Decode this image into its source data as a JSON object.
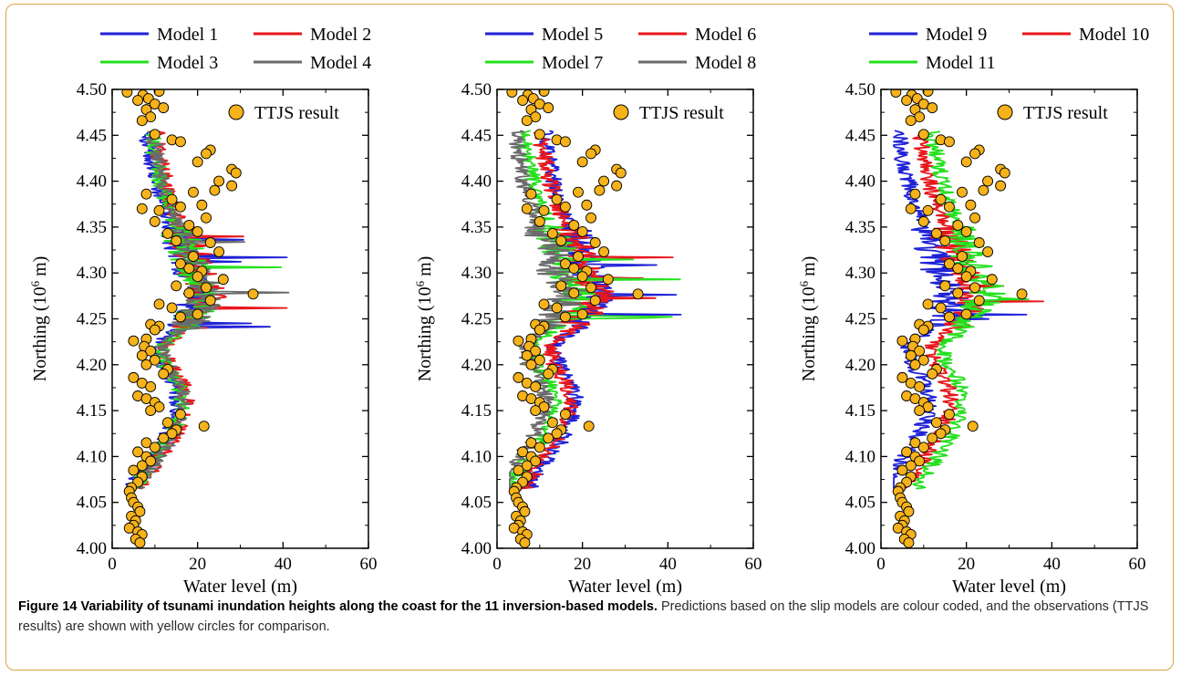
{
  "chart_data": [
    {
      "type": "line",
      "xlabel": "Water level (m)",
      "ylabel_main": "Northing (10",
      "ylabel_sup": "6",
      "ylabel_tail": " m)",
      "xlim": [
        0,
        60
      ],
      "ylim": [
        4.0,
        4.5
      ],
      "xticks": [
        "0",
        "20",
        "40",
        "60"
      ],
      "yticks": [
        "4.00",
        "4.05",
        "4.10",
        "4.15",
        "4.20",
        "4.25",
        "4.30",
        "4.35",
        "4.40",
        "4.45",
        "4.50"
      ],
      "series": [
        {
          "name": "Model 1",
          "color": "#1f22d6",
          "offset": 0
        },
        {
          "name": "Model 2",
          "color": "#e8161b",
          "offset": 2
        },
        {
          "name": "Model 3",
          "color": "#25e01f",
          "offset": 1
        },
        {
          "name": "Model 4",
          "color": "#6b6b6b",
          "offset": 1.5
        }
      ],
      "observations_label": "TTJS result"
    },
    {
      "type": "line",
      "xlabel": "Water level (m)",
      "ylabel_main": "Northing (10",
      "ylabel_sup": "6",
      "ylabel_tail": " m)",
      "xlim": [
        0,
        60
      ],
      "ylim": [
        4.0,
        4.5
      ],
      "xticks": [
        "0",
        "20",
        "40",
        "60"
      ],
      "yticks": [
        "4.00",
        "4.05",
        "4.10",
        "4.15",
        "4.20",
        "4.25",
        "4.30",
        "4.35",
        "4.40",
        "4.45",
        "4.50"
      ],
      "series": [
        {
          "name": "Model 5",
          "color": "#1f22d6",
          "offset": 3
        },
        {
          "name": "Model 6",
          "color": "#e8161b",
          "offset": 2
        },
        {
          "name": "Model 7",
          "color": "#25e01f",
          "offset": -2
        },
        {
          "name": "Model 8",
          "color": "#6b6b6b",
          "offset": -4
        }
      ],
      "observations_label": "TTJS result"
    },
    {
      "type": "line",
      "xlabel": "Water level (m)",
      "ylabel_main": "Northing (10",
      "ylabel_sup": "6",
      "ylabel_tail": " m)",
      "xlim": [
        0,
        60
      ],
      "ylim": [
        4.0,
        4.5
      ],
      "xticks": [
        "0",
        "20",
        "40",
        "60"
      ],
      "yticks": [
        "4.00",
        "4.05",
        "4.10",
        "4.15",
        "4.20",
        "4.25",
        "4.30",
        "4.35",
        "4.40",
        "4.45",
        "4.50"
      ],
      "series": [
        {
          "name": "Model 9",
          "color": "#1f22d6",
          "offset": -4
        },
        {
          "name": "Model 10",
          "color": "#e8161b",
          "offset": 1
        },
        {
          "name": "Model 11",
          "color": "#25e01f",
          "offset": 4
        }
      ],
      "observations_label": "TTJS result"
    }
  ],
  "observations": {
    "color": "#f5b21a",
    "points": [
      [
        3.5,
        4.497
      ],
      [
        7.2,
        4.494
      ],
      [
        8.5,
        4.49
      ],
      [
        11,
        4.498
      ],
      [
        6,
        4.488
      ],
      [
        10,
        4.484
      ],
      [
        12,
        4.48
      ],
      [
        8,
        4.478
      ],
      [
        9,
        4.47
      ],
      [
        7,
        4.466
      ],
      [
        10,
        4.451
      ],
      [
        14,
        4.445
      ],
      [
        16,
        4.443
      ],
      [
        23,
        4.434
      ],
      [
        22,
        4.43
      ],
      [
        20,
        4.421
      ],
      [
        25,
        4.4
      ],
      [
        28,
        4.413
      ],
      [
        29,
        4.409
      ],
      [
        24,
        4.39
      ],
      [
        28,
        4.395
      ],
      [
        19,
        4.388
      ],
      [
        8,
        4.386
      ],
      [
        14,
        4.38
      ],
      [
        16,
        4.372
      ],
      [
        21,
        4.374
      ],
      [
        7,
        4.37
      ],
      [
        11,
        4.368
      ],
      [
        10,
        4.356
      ],
      [
        18,
        4.352
      ],
      [
        22,
        4.36
      ],
      [
        20,
        4.345
      ],
      [
        13,
        4.343
      ],
      [
        15,
        4.335
      ],
      [
        23,
        4.333
      ],
      [
        25,
        4.323
      ],
      [
        19,
        4.318
      ],
      [
        16,
        4.31
      ],
      [
        18,
        4.305
      ],
      [
        21,
        4.302
      ],
      [
        20,
        4.296
      ],
      [
        26,
        4.293
      ],
      [
        15,
        4.286
      ],
      [
        22,
        4.284
      ],
      [
        18,
        4.278
      ],
      [
        33,
        4.277
      ],
      [
        23,
        4.27
      ],
      [
        11,
        4.266
      ],
      [
        14,
        4.262
      ],
      [
        20,
        4.255
      ],
      [
        16,
        4.252
      ],
      [
        9,
        4.244
      ],
      [
        11,
        4.242
      ],
      [
        10,
        4.238
      ],
      [
        8,
        4.228
      ],
      [
        5,
        4.226
      ],
      [
        7.5,
        4.22
      ],
      [
        9,
        4.215
      ],
      [
        7,
        4.21
      ],
      [
        10,
        4.205
      ],
      [
        8,
        4.2
      ],
      [
        13,
        4.195
      ],
      [
        12,
        4.19
      ],
      [
        5,
        4.186
      ],
      [
        7,
        4.18
      ],
      [
        9,
        4.176
      ],
      [
        6,
        4.166
      ],
      [
        8,
        4.163
      ],
      [
        10,
        4.159
      ],
      [
        11,
        4.154
      ],
      [
        9,
        4.15
      ],
      [
        16,
        4.146
      ],
      [
        13,
        4.137
      ],
      [
        21.5,
        4.133
      ],
      [
        15,
        4.129
      ],
      [
        14,
        4.125
      ],
      [
        12,
        4.12
      ],
      [
        8,
        4.115
      ],
      [
        10,
        4.11
      ],
      [
        6,
        4.105
      ],
      [
        8,
        4.1
      ],
      [
        9,
        4.095
      ],
      [
        7,
        4.09
      ],
      [
        5,
        4.085
      ],
      [
        7,
        4.078
      ],
      [
        6,
        4.072
      ],
      [
        4.5,
        4.066
      ],
      [
        4,
        4.062
      ],
      [
        4.5,
        4.055
      ],
      [
        5,
        4.05
      ],
      [
        6,
        4.045
      ],
      [
        6.5,
        4.04
      ],
      [
        4.5,
        4.035
      ],
      [
        5.5,
        4.03
      ],
      [
        5,
        4.025
      ],
      [
        4,
        4.022
      ],
      [
        6,
        4.018
      ],
      [
        7,
        4.015
      ],
      [
        5.5,
        4.01
      ],
      [
        6.5,
        4.006
      ]
    ]
  },
  "caption": {
    "bold": "Figure 14 Variability of tsunami inundation heights along the coast for the 11 inversion-based models.",
    "rest": " Predictions based on the slip models are colour coded, and the observations (TTJS results) are shown with yellow circles for comparison."
  }
}
